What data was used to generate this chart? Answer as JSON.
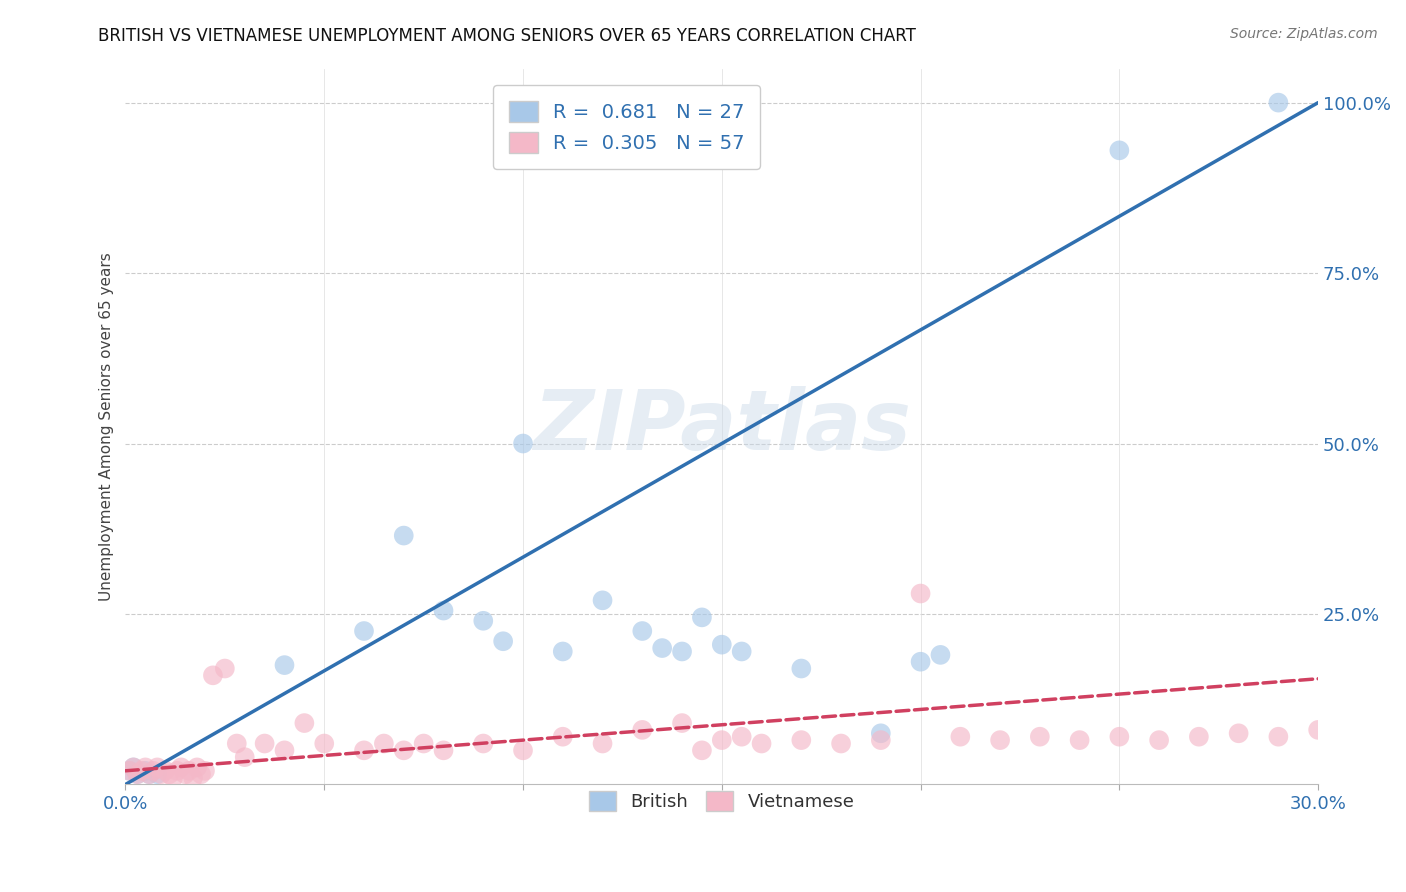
{
  "title": "BRITISH VS VIETNAMESE UNEMPLOYMENT AMONG SENIORS OVER 65 YEARS CORRELATION CHART",
  "source": "Source: ZipAtlas.com",
  "ylabel": "Unemployment Among Seniors over 65 years",
  "xlim": [
    0.0,
    0.3
  ],
  "ylim": [
    0.0,
    1.05
  ],
  "x_ticks": [
    0.0,
    0.05,
    0.1,
    0.15,
    0.2,
    0.25,
    0.3
  ],
  "x_tick_labels": [
    "0.0%",
    "",
    "",
    "",
    "",
    "",
    "30.0%"
  ],
  "y_ticks_right": [
    0.25,
    0.5,
    0.75,
    1.0
  ],
  "y_tick_labels_right": [
    "25.0%",
    "50.0%",
    "75.0%",
    "100.0%"
  ],
  "background_color": "#ffffff",
  "watermark": "ZIPatlas",
  "british_color": "#a8c8e8",
  "vietnamese_color": "#f4b8c8",
  "british_line_color": "#3070b0",
  "vietnamese_line_color": "#d04060",
  "british_R": 0.681,
  "british_N": 27,
  "vietnamese_R": 0.305,
  "vietnamese_N": 57,
  "british_line_x0": 0.0,
  "british_line_y0": 0.0,
  "british_line_x1": 0.3,
  "british_line_y1": 1.0,
  "vietnamese_line_x0": 0.0,
  "vietnamese_line_y0": 0.02,
  "vietnamese_line_x1": 0.3,
  "vietnamese_line_y1": 0.155,
  "british_x": [
    0.001,
    0.002,
    0.003,
    0.005,
    0.006,
    0.008,
    0.04,
    0.06,
    0.07,
    0.08,
    0.09,
    0.095,
    0.1,
    0.11,
    0.12,
    0.13,
    0.14,
    0.145,
    0.15,
    0.155,
    0.17,
    0.19,
    0.2,
    0.205,
    0.135,
    0.25,
    0.29
  ],
  "british_y": [
    0.02,
    0.025,
    0.015,
    0.02,
    0.015,
    0.015,
    0.175,
    0.225,
    0.365,
    0.255,
    0.24,
    0.21,
    0.5,
    0.195,
    0.27,
    0.225,
    0.195,
    0.245,
    0.205,
    0.195,
    0.17,
    0.075,
    0.18,
    0.19,
    0.2,
    0.93,
    1.0
  ],
  "vietnamese_x": [
    0.001,
    0.002,
    0.003,
    0.004,
    0.005,
    0.006,
    0.007,
    0.008,
    0.009,
    0.01,
    0.011,
    0.012,
    0.013,
    0.014,
    0.015,
    0.016,
    0.017,
    0.018,
    0.019,
    0.02,
    0.022,
    0.025,
    0.028,
    0.03,
    0.035,
    0.04,
    0.045,
    0.05,
    0.06,
    0.065,
    0.07,
    0.075,
    0.08,
    0.09,
    0.1,
    0.11,
    0.12,
    0.13,
    0.14,
    0.145,
    0.15,
    0.155,
    0.16,
    0.17,
    0.18,
    0.19,
    0.2,
    0.21,
    0.22,
    0.23,
    0.24,
    0.25,
    0.26,
    0.27,
    0.28,
    0.29,
    0.3
  ],
  "vietnamese_y": [
    0.02,
    0.025,
    0.015,
    0.02,
    0.025,
    0.015,
    0.02,
    0.025,
    0.015,
    0.02,
    0.015,
    0.01,
    0.02,
    0.025,
    0.015,
    0.02,
    0.01,
    0.025,
    0.015,
    0.02,
    0.16,
    0.17,
    0.06,
    0.04,
    0.06,
    0.05,
    0.09,
    0.06,
    0.05,
    0.06,
    0.05,
    0.06,
    0.05,
    0.06,
    0.05,
    0.07,
    0.06,
    0.08,
    0.09,
    0.05,
    0.065,
    0.07,
    0.06,
    0.065,
    0.06,
    0.065,
    0.28,
    0.07,
    0.065,
    0.07,
    0.065,
    0.07,
    0.065,
    0.07,
    0.075,
    0.07,
    0.08
  ]
}
